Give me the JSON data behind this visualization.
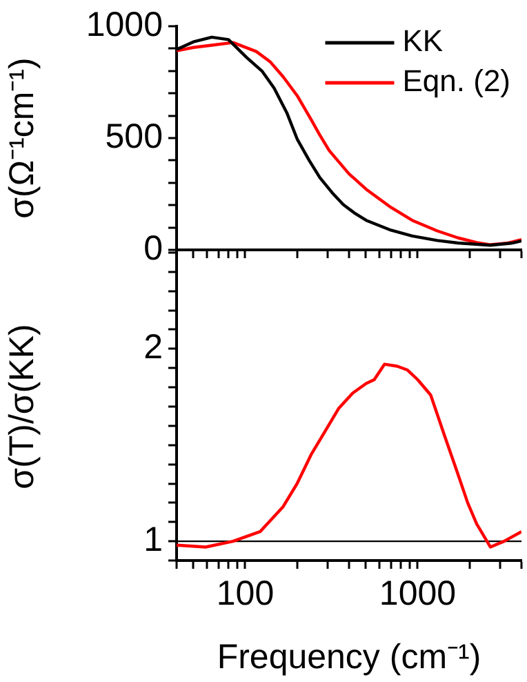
{
  "chart_data": [
    {
      "type": "line",
      "ylabel": "σ(Ω⁻¹cm⁻¹)",
      "log": "x",
      "xlim": [
        40,
        4000
      ],
      "xticks": [
        {
          "value": 40,
          "label": null
        },
        {
          "value": 50,
          "label": null
        },
        {
          "value": 60,
          "label": null
        },
        {
          "value": 70,
          "label": null
        },
        {
          "value": 80,
          "label": null
        },
        {
          "value": 90,
          "label": null
        },
        {
          "value": 100,
          "label": null
        },
        {
          "value": 200,
          "label": null
        },
        {
          "value": 300,
          "label": null
        },
        {
          "value": 400,
          "label": null
        },
        {
          "value": 500,
          "label": null
        },
        {
          "value": 600,
          "label": null
        },
        {
          "value": 700,
          "label": null
        },
        {
          "value": 800,
          "label": null
        },
        {
          "value": 900,
          "label": null
        },
        {
          "value": 1000,
          "label": null
        },
        {
          "value": 2000,
          "label": null
        },
        {
          "value": 3000,
          "label": null
        },
        {
          "value": 4000,
          "label": null
        }
      ],
      "ylim": [
        0,
        1000
      ],
      "yticks": [
        0,
        {
          "value": 100,
          "label": null
        },
        {
          "value": 200,
          "label": null
        },
        {
          "value": 300,
          "label": null
        },
        {
          "value": 400,
          "label": null
        },
        500,
        {
          "value": 600,
          "label": null
        },
        {
          "value": 700,
          "label": null
        },
        {
          "value": 800,
          "label": null
        },
        {
          "value": 900,
          "label": null
        },
        1000
      ],
      "tick_labels": "y",
      "legend": "top right",
      "marker": "none",
      "grid": false,
      "series": [
        {
          "name": "KK",
          "color": "#000000",
          "x": [
            40,
            50,
            64,
            80,
            102,
            125,
            147,
            175,
            200,
            235,
            271,
            320,
            370,
            430,
            503,
            700,
            930,
            1300,
            1710,
            2640,
            3500,
            4000
          ],
          "values": [
            896,
            930,
            951,
            940,
            860,
            800,
            724,
            610,
            496,
            400,
            323,
            255,
            203,
            165,
            132,
            88,
            62,
            42,
            31,
            21,
            30,
            40
          ]
        },
        {
          "name": "Eqn. (2)",
          "color": "#ff0000",
          "x": [
            40,
            50,
            64,
            85,
            116,
            140,
            166,
            200,
            241,
            270,
            307,
            400,
            503,
            700,
            930,
            1300,
            1710,
            2200,
            2640,
            3300,
            4000
          ],
          "values": [
            890,
            905,
            915,
            927,
            887,
            840,
            774,
            690,
            583,
            515,
            444,
            340,
            271,
            190,
            132,
            85,
            54,
            33,
            23,
            30,
            46
          ]
        }
      ]
    },
    {
      "type": "line",
      "xlabel": "Frequency (cm⁻¹)",
      "ylabel": "σ(T)/σ(KK)",
      "log": "x",
      "xlim": [
        40,
        4000
      ],
      "xticks": [
        {
          "value": 40,
          "label": null
        },
        {
          "value": 50,
          "label": null
        },
        {
          "value": 60,
          "label": null
        },
        {
          "value": 70,
          "label": null
        },
        {
          "value": 80,
          "label": null
        },
        {
          "value": 90,
          "label": null
        },
        {
          "value": 100,
          "label": "100"
        },
        {
          "value": 200,
          "label": null
        },
        {
          "value": 300,
          "label": null
        },
        {
          "value": 400,
          "label": null
        },
        {
          "value": 500,
          "label": null
        },
        {
          "value": 600,
          "label": null
        },
        {
          "value": 700,
          "label": null
        },
        {
          "value": 800,
          "label": null
        },
        {
          "value": 900,
          "label": null
        },
        {
          "value": 1000,
          "label": "1000"
        },
        {
          "value": 2000,
          "label": null
        },
        {
          "value": 3000,
          "label": null
        },
        {
          "value": 4000,
          "label": null
        }
      ],
      "ylim": [
        0.9,
        2.5
      ],
      "yticks": [
        {
          "value": 0.9,
          "label": null
        },
        1,
        {
          "value": 1.1,
          "label": null
        },
        {
          "value": 1.2,
          "label": null
        },
        {
          "value": 1.3,
          "label": null
        },
        {
          "value": 1.4,
          "label": null
        },
        {
          "value": 1.5,
          "label": null
        },
        {
          "value": 1.6,
          "label": null
        },
        {
          "value": 1.7,
          "label": null
        },
        {
          "value": 1.8,
          "label": null
        },
        {
          "value": 1.9,
          "label": null
        },
        2,
        {
          "value": 2.1,
          "label": null
        },
        {
          "value": 2.2,
          "label": null
        },
        {
          "value": 2.3,
          "label": null
        },
        {
          "value": 2.4,
          "label": null
        },
        {
          "value": 2.5,
          "label": null
        }
      ],
      "marker": "none",
      "grid": false,
      "ref_lines": [
        {
          "axis": "y",
          "value": 1,
          "color": "#000000"
        }
      ],
      "series": [
        {
          "color": "#ff0000",
          "x": [
            40,
            59,
            85,
            122,
            166,
            200,
            241,
            290,
            348,
            420,
            503,
            560,
            642,
            760,
            873,
            1000,
            1190,
            1430,
            1710,
            1950,
            2200,
            2640,
            3170,
            4000
          ],
          "values": [
            0.98,
            0.97,
            1.0,
            1.05,
            1.18,
            1.3,
            1.45,
            1.57,
            1.69,
            1.77,
            1.82,
            1.84,
            1.92,
            1.91,
            1.89,
            1.84,
            1.76,
            1.55,
            1.35,
            1.2,
            1.09,
            0.97,
            1.0,
            1.05
          ]
        }
      ]
    }
  ]
}
